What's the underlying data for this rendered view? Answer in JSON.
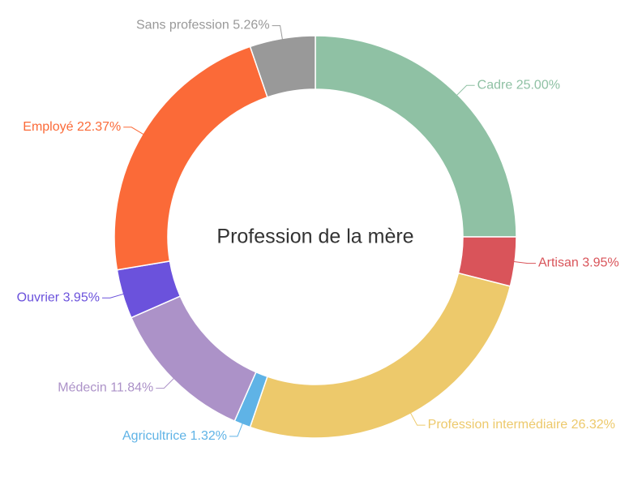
{
  "chart_data": {
    "type": "donut",
    "title": "Profession de la mère",
    "categories": [
      "Cadre",
      "Artisan",
      "Profession intermédiaire",
      "Agricultrice",
      "Médecin",
      "Ouvrier",
      "Employé",
      "Sans profession"
    ],
    "values": [
      25.0,
      3.95,
      26.32,
      1.32,
      11.84,
      3.95,
      22.37,
      5.26
    ],
    "value_labels": [
      "25.00%",
      "3.95%",
      "26.32%",
      "1.32%",
      "11.84%",
      "3.95%",
      "22.37%",
      "5.26%"
    ],
    "colors": [
      "#8fc1a4",
      "#d9545a",
      "#edc96b",
      "#5fb3e6",
      "#ac92c8",
      "#6b52dc",
      "#fb6a38",
      "#999999"
    ]
  }
}
